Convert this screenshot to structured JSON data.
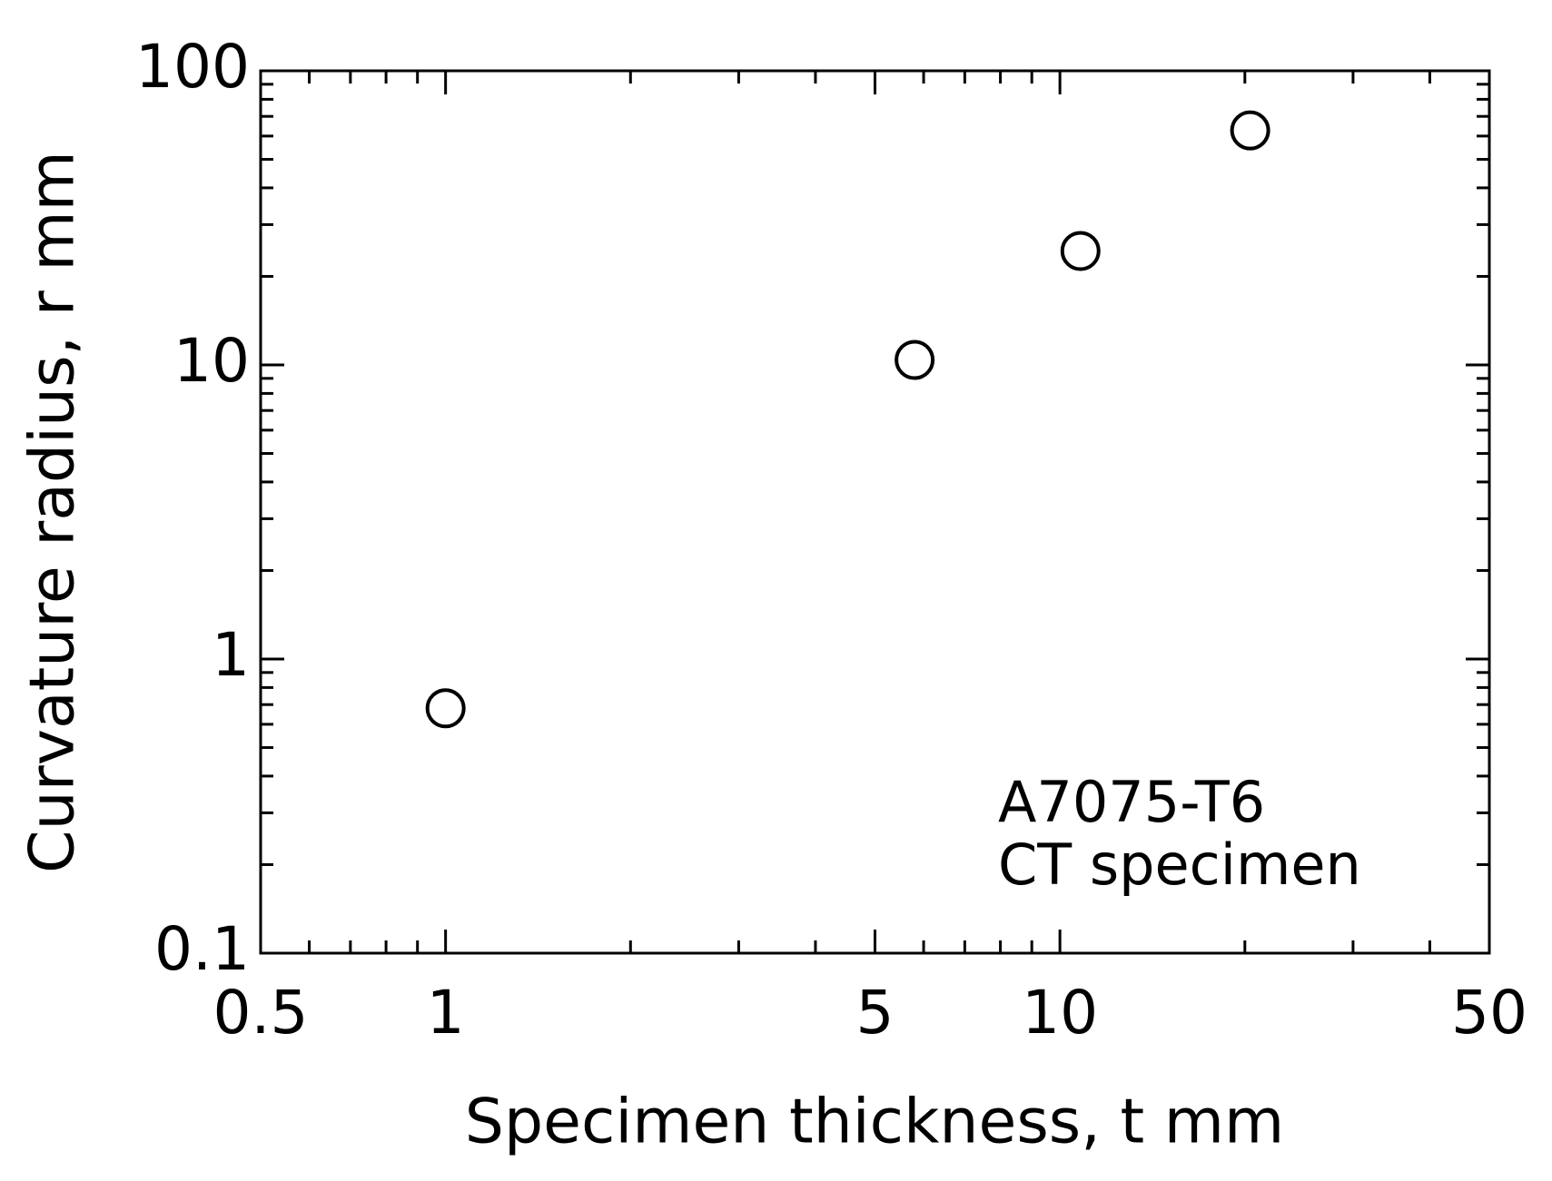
{
  "chart_data": {
    "type": "scatter",
    "x_label": "Specimen thickness, t mm",
    "y_label": "Curvature radius, r mm",
    "annotations": [
      "A7075-T6",
      "CT specimen"
    ],
    "series": [
      {
        "color": "#000000",
        "x": [
          1.0,
          5.8,
          10.8,
          20.4
        ],
        "values": [
          0.68,
          10.4,
          24.4,
          62.7
        ]
      }
    ],
    "xlim": [
      0.5,
      50
    ],
    "ylim": [
      0.1,
      100
    ],
    "xscale": "log",
    "yscale": "log",
    "xticks": [
      0.5,
      1,
      5,
      10,
      50
    ],
    "yticks": [
      0.1,
      1,
      10,
      100
    ],
    "xminorticks": [
      0.6,
      0.7,
      0.8,
      0.9,
      2,
      3,
      4,
      6,
      7,
      8,
      9,
      20,
      30,
      40
    ],
    "yminorticks": [
      0.2,
      0.3,
      0.4,
      0.5,
      0.6,
      0.7,
      0.8,
      0.9,
      2,
      3,
      4,
      5,
      6,
      7,
      8,
      9,
      20,
      30,
      40,
      50,
      60,
      70,
      80,
      90
    ],
    "grid": false
  }
}
